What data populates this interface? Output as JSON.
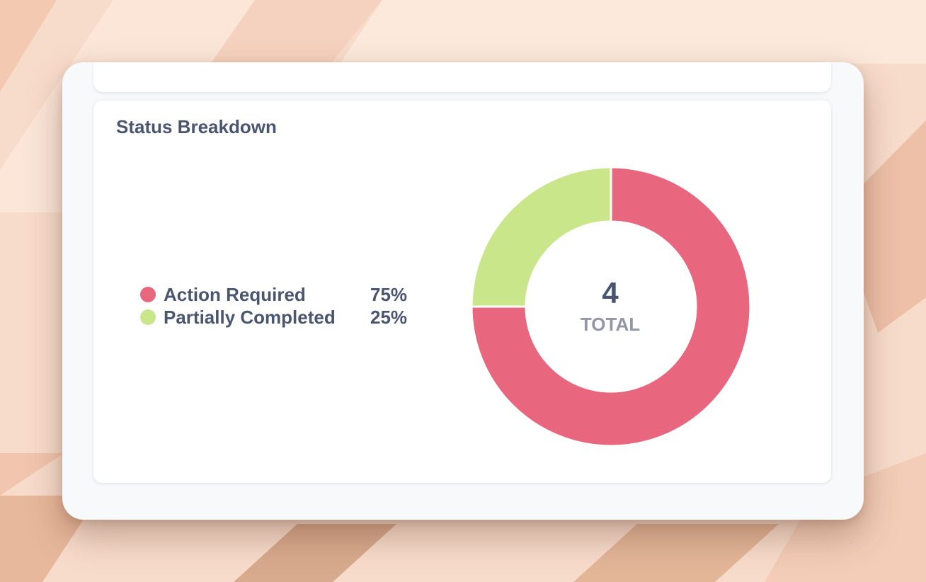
{
  "card": {
    "title": "Status Breakdown"
  },
  "chart_data": {
    "type": "pie",
    "variant": "donut",
    "title": "Status Breakdown",
    "categories": [
      "Action Required",
      "Partially Completed"
    ],
    "values": [
      75,
      25
    ],
    "unit": "%",
    "labels": [
      "75%",
      "25%"
    ],
    "colors": [
      "#e8677f",
      "#c9e68a"
    ],
    "total_value": "4",
    "total_label": "TOTAL",
    "legend_position": "left"
  }
}
